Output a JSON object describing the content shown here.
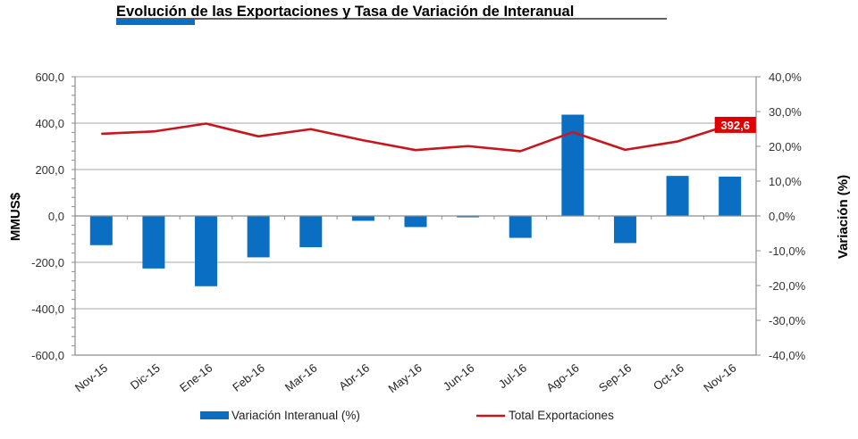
{
  "chart_data": {
    "type": "bar",
    "title": "Evolución de las Exportaciones y Tasa de Variación de Interanual",
    "xlabel": "",
    "ylabel": "MMUS$",
    "y2label": "Variación (%)",
    "categories": [
      "Nov-15",
      "Dic-15",
      "Ene-16",
      "Feb-16",
      "Mar-16",
      "Abr-16",
      "May-16",
      "Jun-16",
      "Jul-16",
      "Ago-16",
      "Sep-16",
      "Oct-16",
      "Nov-16"
    ],
    "ylim": [
      -600,
      600
    ],
    "y_ticks": [
      600,
      400,
      200,
      0,
      -200,
      -400,
      -600
    ],
    "y_tick_labels": [
      "600,0",
      "400,0",
      "200,0",
      "0,0",
      "-200,0",
      "-400,0",
      "-600,0"
    ],
    "y2lim": [
      -40,
      40
    ],
    "y2_ticks": [
      40,
      30,
      20,
      10,
      0,
      -10,
      -20,
      -30,
      -40
    ],
    "y2_tick_labels": [
      "40,0%",
      "30,0%",
      "20,0%",
      "10,0%",
      "0,0%",
      "-10,0%",
      "-20,0%",
      "-30,0%",
      "-40,0%"
    ],
    "grid": true,
    "legend_position": "bottom",
    "series": [
      {
        "name": "Variación Interanual (%)",
        "type": "bar",
        "axis": "right",
        "color": "#0a6fc2",
        "values": [
          -8.4,
          -15.1,
          -20.2,
          -11.9,
          -9.0,
          -1.4,
          -3.2,
          -0.4,
          -6.3,
          29.1,
          -7.8,
          11.5,
          11.3
        ]
      },
      {
        "name": "Total Exportaciones",
        "type": "line",
        "axis": "left",
        "color": "#c8161d",
        "values": [
          354,
          364,
          398,
          343,
          374,
          326,
          284,
          301,
          279,
          361,
          285,
          321,
          392.6
        ]
      }
    ],
    "annotations": [
      {
        "category": "Nov-16",
        "series": "Total Exportaciones",
        "text": "392,6",
        "background": "#e00000"
      }
    ]
  }
}
